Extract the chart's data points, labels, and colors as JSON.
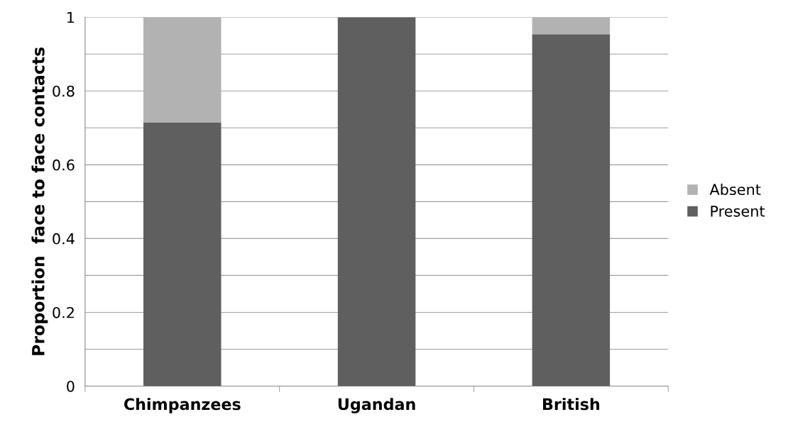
{
  "chart_data": {
    "type": "bar",
    "stacked": true,
    "ylabel": "Proportion  face to face contacts",
    "categories": [
      "Chimpanzees",
      "Ugandan",
      "British"
    ],
    "series": [
      {
        "name": "Present",
        "color": "#5f5f5f",
        "values": [
          0.715,
          1.0,
          0.954
        ]
      },
      {
        "name": "Absent",
        "color": "#b2b2b2",
        "values": [
          0.285,
          0.0,
          0.046
        ]
      }
    ],
    "ylim": [
      0,
      1
    ],
    "yticks": [
      0,
      {
        "value": 0.1,
        "label": null
      },
      0.2,
      {
        "value": 0.3,
        "label": null
      },
      0.4,
      {
        "value": 0.5,
        "label": null
      },
      0.6,
      {
        "value": 0.7,
        "label": null
      },
      0.8,
      {
        "value": 0.9,
        "label": null
      },
      1
    ],
    "grid": "y",
    "legend": "right"
  }
}
